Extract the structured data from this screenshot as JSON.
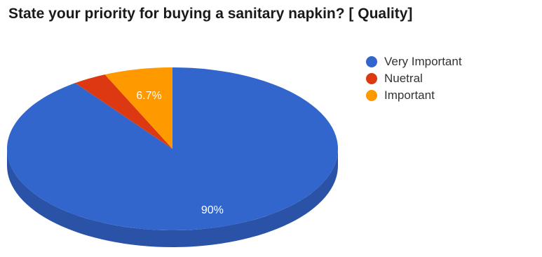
{
  "chart_data": {
    "type": "pie",
    "title": "State your priority for buying a sanitary napkin? [ Quality]",
    "categories": [
      "Very Important",
      "Nuetral",
      "Important"
    ],
    "values": [
      90,
      3.3,
      6.7
    ],
    "data_labels": [
      "90%",
      "",
      "6.7%"
    ],
    "colors": [
      "#3366cc",
      "#dc3912",
      "#ff9900"
    ],
    "side_colors": [
      "#2a53a8",
      "#a52b0e",
      "#c77700"
    ],
    "style": "3d",
    "legend_position": "right"
  }
}
